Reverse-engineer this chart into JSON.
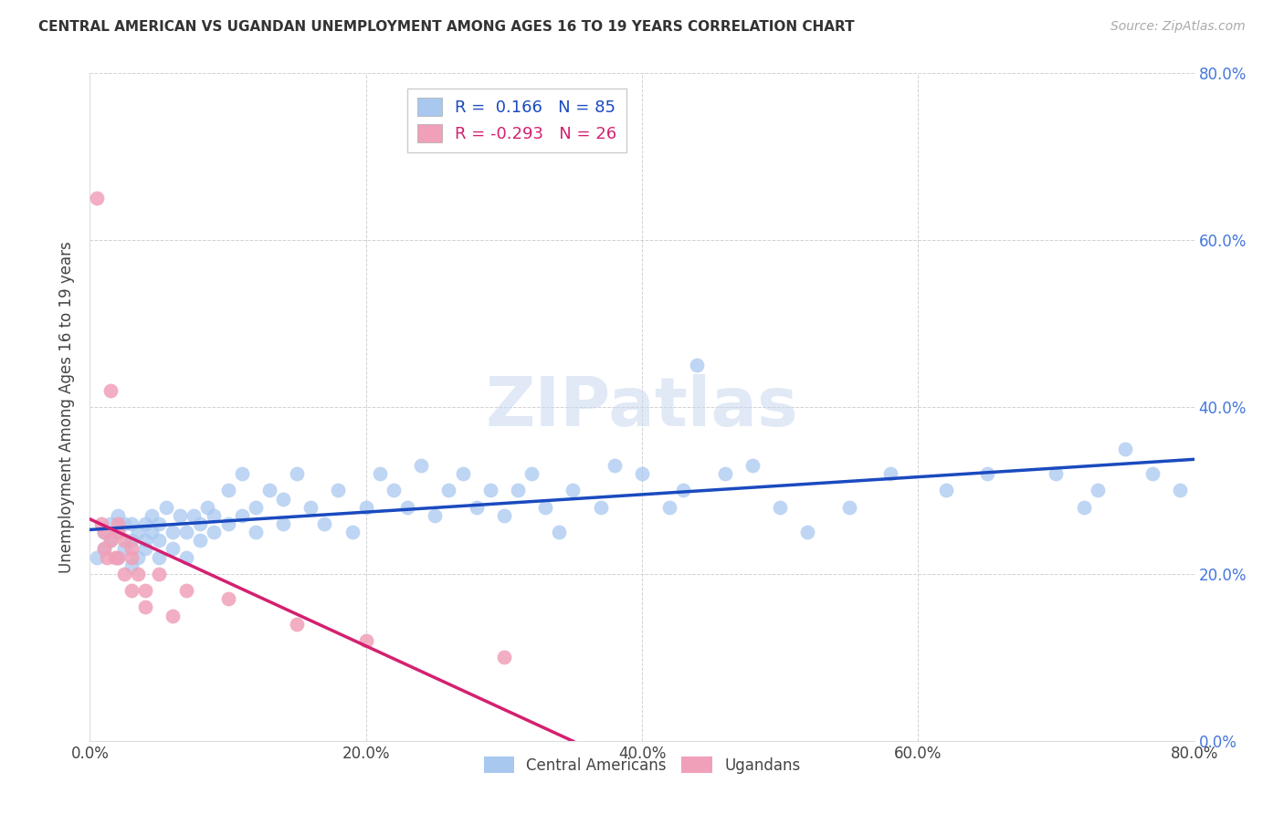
{
  "title": "CENTRAL AMERICAN VS UGANDAN UNEMPLOYMENT AMONG AGES 16 TO 19 YEARS CORRELATION CHART",
  "source": "Source: ZipAtlas.com",
  "ylabel_label": "Unemployment Among Ages 16 to 19 years",
  "xlim": [
    0.0,
    0.8
  ],
  "ylim": [
    0.0,
    0.8
  ],
  "blue_R": 0.166,
  "blue_N": 85,
  "pink_R": -0.293,
  "pink_N": 26,
  "blue_color": "#a8c8f0",
  "pink_color": "#f0a0b8",
  "blue_line_color": "#1a4abf",
  "pink_line_color": "#d42070",
  "legend_label_blue": "Central Americans",
  "legend_label_pink": "Ugandans",
  "watermark": "ZIPatlas",
  "tick_vals": [
    0.0,
    0.2,
    0.4,
    0.6,
    0.8
  ],
  "tick_labels": [
    "0.0%",
    "20.0%",
    "40.0%",
    "60.0%",
    "80.0%"
  ],
  "blue_x": [
    0.005,
    0.01,
    0.01,
    0.015,
    0.015,
    0.02,
    0.02,
    0.02,
    0.025,
    0.025,
    0.03,
    0.03,
    0.03,
    0.035,
    0.035,
    0.04,
    0.04,
    0.04,
    0.045,
    0.045,
    0.05,
    0.05,
    0.05,
    0.055,
    0.06,
    0.06,
    0.065,
    0.07,
    0.07,
    0.075,
    0.08,
    0.08,
    0.085,
    0.09,
    0.09,
    0.1,
    0.1,
    0.11,
    0.11,
    0.12,
    0.12,
    0.13,
    0.14,
    0.14,
    0.15,
    0.16,
    0.17,
    0.18,
    0.19,
    0.2,
    0.21,
    0.22,
    0.23,
    0.24,
    0.25,
    0.26,
    0.27,
    0.28,
    0.29,
    0.3,
    0.31,
    0.32,
    0.33,
    0.34,
    0.35,
    0.37,
    0.38,
    0.4,
    0.42,
    0.43,
    0.44,
    0.46,
    0.48,
    0.5,
    0.52,
    0.55,
    0.58,
    0.62,
    0.65,
    0.7,
    0.72,
    0.73,
    0.75,
    0.77,
    0.79
  ],
  "blue_y": [
    0.22,
    0.25,
    0.23,
    0.26,
    0.24,
    0.22,
    0.25,
    0.27,
    0.23,
    0.26,
    0.21,
    0.24,
    0.26,
    0.25,
    0.22,
    0.23,
    0.26,
    0.24,
    0.25,
    0.27,
    0.22,
    0.24,
    0.26,
    0.28,
    0.23,
    0.25,
    0.27,
    0.22,
    0.25,
    0.27,
    0.24,
    0.26,
    0.28,
    0.25,
    0.27,
    0.26,
    0.3,
    0.27,
    0.32,
    0.25,
    0.28,
    0.3,
    0.26,
    0.29,
    0.32,
    0.28,
    0.26,
    0.3,
    0.25,
    0.28,
    0.32,
    0.3,
    0.28,
    0.33,
    0.27,
    0.3,
    0.32,
    0.28,
    0.3,
    0.27,
    0.3,
    0.32,
    0.28,
    0.25,
    0.3,
    0.28,
    0.33,
    0.32,
    0.28,
    0.3,
    0.45,
    0.32,
    0.33,
    0.28,
    0.25,
    0.28,
    0.32,
    0.3,
    0.32,
    0.32,
    0.28,
    0.3,
    0.35,
    0.32,
    0.3
  ],
  "pink_x": [
    0.005,
    0.008,
    0.01,
    0.01,
    0.012,
    0.015,
    0.015,
    0.018,
    0.02,
    0.02,
    0.02,
    0.025,
    0.025,
    0.03,
    0.03,
    0.03,
    0.035,
    0.04,
    0.04,
    0.05,
    0.06,
    0.07,
    0.1,
    0.15,
    0.2,
    0.3
  ],
  "pink_y": [
    0.65,
    0.26,
    0.25,
    0.23,
    0.22,
    0.42,
    0.24,
    0.22,
    0.26,
    0.25,
    0.22,
    0.24,
    0.2,
    0.23,
    0.22,
    0.18,
    0.2,
    0.18,
    0.16,
    0.2,
    0.15,
    0.18,
    0.17,
    0.14,
    0.12,
    0.1
  ]
}
